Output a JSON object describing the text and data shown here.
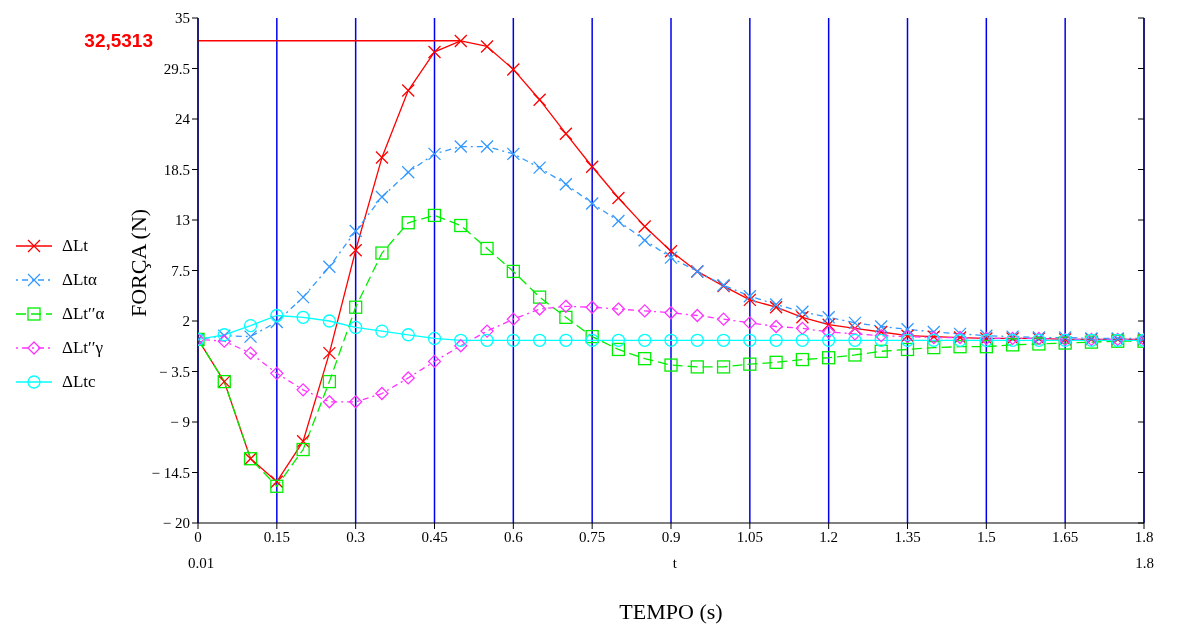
{
  "chart_data": {
    "type": "line",
    "xlabel": "TEMPO (s)",
    "ylabel": "FORÇA (N)",
    "x": [
      0,
      0.05,
      0.1,
      0.15,
      0.2,
      0.25,
      0.3,
      0.35,
      0.4,
      0.45,
      0.5,
      0.55,
      0.6,
      0.65,
      0.7,
      0.75,
      0.8,
      0.85,
      0.9,
      0.95,
      1.0,
      1.05,
      1.1,
      1.15,
      1.2,
      1.25,
      1.3,
      1.35,
      1.4,
      1.45,
      1.5,
      1.55,
      1.6,
      1.65,
      1.7,
      1.75,
      1.8
    ],
    "series": [
      {
        "name": "ΔLt",
        "color": "#ff0000",
        "marker": "cross",
        "line_style": "solid",
        "values": [
          0,
          -4.6,
          -13.0,
          -15.5,
          -11.1,
          -1.5,
          9.7,
          19.8,
          27.1,
          31.3,
          32.5,
          31.9,
          29.4,
          26.1,
          22.4,
          18.8,
          15.4,
          12.3,
          9.6,
          7.4,
          5.8,
          4.3,
          3.5,
          2.4,
          1.6,
          1.2,
          0.8,
          0.4,
          0.3,
          0.2,
          0.1,
          0.1,
          0.1,
          0,
          0,
          0,
          0
        ]
      },
      {
        "name": "ΔLtα",
        "color": "#3399ff",
        "marker": "cross",
        "line_style": "dotted",
        "values": [
          0,
          0.4,
          0.3,
          1.9,
          4.6,
          7.9,
          11.8,
          15.5,
          18.2,
          20.2,
          21.0,
          21.0,
          20.2,
          18.7,
          16.9,
          14.8,
          12.9,
          10.8,
          8.9,
          7.4,
          5.9,
          4.7,
          3.8,
          3.0,
          2.4,
          1.8,
          1.4,
          1.1,
          0.8,
          0.6,
          0.4,
          0.3,
          0.2,
          0.2,
          0.1,
          0.1,
          0.1
        ]
      },
      {
        "name": "ΔLt′′α",
        "color": "#00ee00",
        "marker": "square",
        "line_style": "dashed",
        "values": [
          0,
          -4.6,
          -13.0,
          -16.0,
          -12.0,
          -4.6,
          3.5,
          9.4,
          12.7,
          13.5,
          12.4,
          9.9,
          7.4,
          4.6,
          2.4,
          0.3,
          -1.1,
          -2.1,
          -2.8,
          -3.0,
          -3.0,
          -2.7,
          -2.5,
          -2.2,
          -2.0,
          -1.7,
          -1.3,
          -1.1,
          -0.9,
          -0.8,
          -0.8,
          -0.6,
          -0.5,
          -0.4,
          -0.3,
          -0.2,
          -0.2
        ]
      },
      {
        "name": "ΔLt′′γ",
        "color": "#ff33ff",
        "marker": "diamond",
        "line_style": "dotted",
        "values": [
          0,
          -0.2,
          -1.5,
          -3.7,
          -5.5,
          -6.8,
          -6.8,
          -5.9,
          -4.2,
          -2.4,
          -0.7,
          0.9,
          2.2,
          3.3,
          3.6,
          3.5,
          3.3,
          3.1,
          2.9,
          2.6,
          2.2,
          1.8,
          1.4,
          1.2,
          0.8,
          0.6,
          0.4,
          0.3,
          0.2,
          0.2,
          0.1,
          0.1,
          0.1,
          0,
          0,
          0,
          0
        ]
      },
      {
        "name": "ΔLtc",
        "color": "#00ffff",
        "marker": "circle",
        "line_style": "solid",
        "values": [
          0,
          0.5,
          1.5,
          2.6,
          2.4,
          2.0,
          1.3,
          0.9,
          0.5,
          0.1,
          -0.1,
          -0.1,
          -0.1,
          -0.1,
          -0.1,
          -0.1,
          -0.1,
          -0.1,
          -0.1,
          -0.1,
          -0.1,
          -0.1,
          -0.1,
          -0.1,
          -0.1,
          -0.1,
          -0.1,
          -0.1,
          -0.1,
          -0.1,
          -0.1,
          -0.1,
          -0.1,
          -0.1,
          -0.1,
          -0.1,
          -0.1
        ]
      }
    ],
    "xlim": [
      0,
      1.8
    ],
    "xticks": [
      0,
      0.15,
      0.3,
      0.45,
      0.6,
      0.75,
      0.9,
      1.05,
      1.2,
      1.35,
      1.5,
      1.65,
      1.8
    ],
    "ylim": [
      -20,
      35
    ],
    "yticks": [
      {
        "value": -20,
        "label": "− 20"
      },
      {
        "value": -14.5,
        "label": "− 14.5"
      },
      {
        "value": -9,
        "label": "− 9"
      },
      {
        "value": -3.5,
        "label": "− 3.5"
      },
      2,
      7.5,
      13,
      18.5,
      24,
      29.5,
      35
    ],
    "grid": "x",
    "legend": "left",
    "ref_lines": [
      {
        "axis": "y",
        "value": 32.5313,
        "label": "32,5313",
        "color": "#ff0000"
      }
    ],
    "annotations": [
      "0.01",
      "t",
      "1.8"
    ]
  }
}
